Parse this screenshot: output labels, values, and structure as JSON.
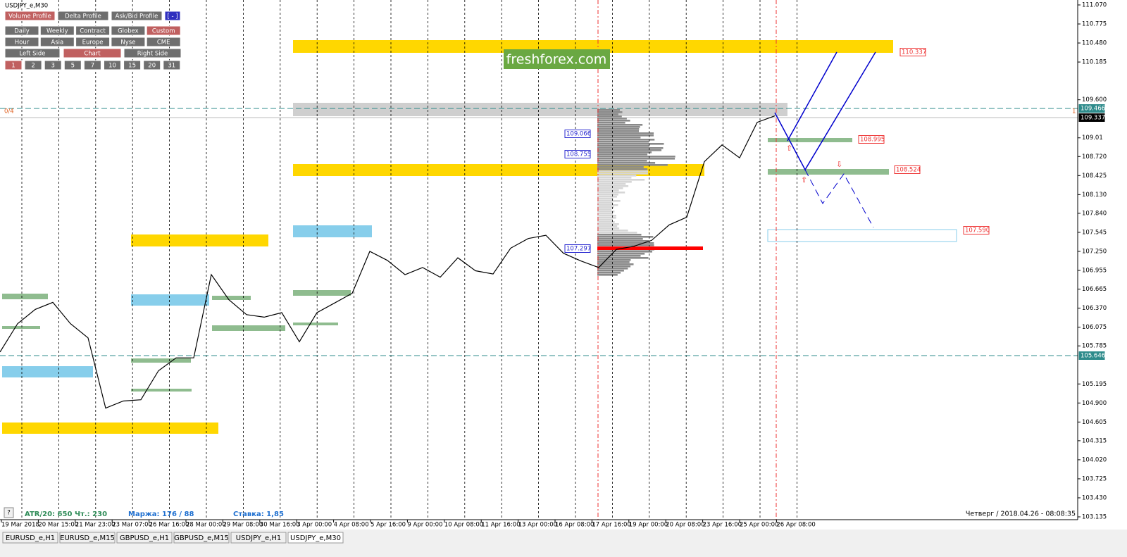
{
  "window": {
    "title": "USDJPY_e,M30"
  },
  "toolbar": {
    "row1": [
      "Volume Profile",
      "Delta Profile",
      "Ask/Bid Profile",
      "[ - ]"
    ],
    "row2": [
      "Daily",
      "Weekly",
      "Contract",
      "Globex",
      "Custom"
    ],
    "row3": [
      "Hour",
      "Asia",
      "Europe",
      "Nyse",
      "CME"
    ],
    "row4": [
      "Left Side",
      "Chart",
      "Right Side"
    ],
    "row5": [
      "1",
      "2",
      "3",
      "5",
      "7",
      "10",
      "15",
      "20",
      "31"
    ]
  },
  "watermark": "freshforex.com",
  "chart": {
    "ylim": [
      103.135,
      111.07
    ],
    "yticks": [
      {
        "value": 111.07,
        "label": "111.070"
      },
      110.775,
      {
        "value": 110.48,
        "label": "110.480"
      },
      110.185,
      {
        "value": 109.6,
        "label": "109.600"
      },
      109.01,
      {
        "value": 108.72,
        "label": "108.720"
      },
      108.425,
      {
        "value": 108.13,
        "label": "108.130"
      },
      {
        "value": 107.84,
        "label": "107.840"
      },
      107.545,
      {
        "value": 107.25,
        "label": "107.250"
      },
      106.955,
      106.665,
      {
        "value": 106.37,
        "label": "106.370"
      },
      106.075,
      105.785,
      105.195,
      {
        "value": 104.9,
        "label": "104.900"
      },
      104.605,
      104.315,
      {
        "value": 104.02,
        "label": "104.020"
      },
      103.725,
      {
        "value": 103.43,
        "label": "103.430"
      },
      103.135
    ],
    "time_labels": [
      "19 Mar 2018",
      "20 Mar 15:00",
      "21 Mar 23:00",
      "23 Mar 07:00",
      "26 Mar 16:00",
      "28 Mar 00:00",
      "29 Mar 08:00",
      "30 Mar 16:00",
      "3 Apr 00:00",
      "4 Apr 08:00",
      "5 Apr 16:00",
      "9 Apr 00:00",
      "10 Apr 08:00",
      "11 Apr 16:00",
      "13 Apr 00:00",
      "16 Apr 08:00",
      "17 Apr 16:00",
      "19 Apr 00:00",
      "20 Apr 08:00",
      "23 Apr 16:00",
      "25 Apr 00:00",
      "26 Apr 08:00"
    ],
    "price": [
      105.69,
      106.13,
      106.35,
      106.46,
      106.13,
      105.91,
      104.82,
      104.93,
      104.95,
      105.4,
      105.6,
      105.6,
      106.89,
      106.5,
      106.27,
      106.23,
      106.3,
      105.85,
      106.3,
      106.45,
      106.6,
      107.25,
      107.11,
      106.89,
      107.0,
      106.85,
      107.15,
      106.95,
      106.9,
      107.3,
      107.45,
      107.5,
      107.22,
      107.1,
      107.0,
      107.28,
      107.33,
      107.42,
      107.66,
      107.78,
      108.64,
      108.9,
      108.7,
      109.25,
      109.35
    ],
    "level_tags": {
      "target_high": "110.337",
      "green_upper": "108.995",
      "green_lower": "108.524",
      "target_low": "107.590"
    },
    "profile_tags": [
      "109.066",
      "108.755",
      "107.297"
    ],
    "axis_tags": [
      "109.466",
      "109.337",
      "105.646"
    ],
    "left_tag": "0/4",
    "right_tag": "1"
  },
  "status": {
    "help": "?",
    "atr": "ATR/20: 650",
    "thu": "Чт.: 230",
    "margin": "Маржа: 176 / 88",
    "rate": "Ставка: 1,85",
    "datetime": "Четверг  /  2018.04.26  -  08:08:35"
  },
  "tabs": [
    "EURUSD_e,H1",
    "EURUSD_e,M15",
    "GBPUSD_e,H1",
    "GBPUSD_e,M15",
    "USDJPY_e,H1",
    "USDJPY_e,M30"
  ]
}
